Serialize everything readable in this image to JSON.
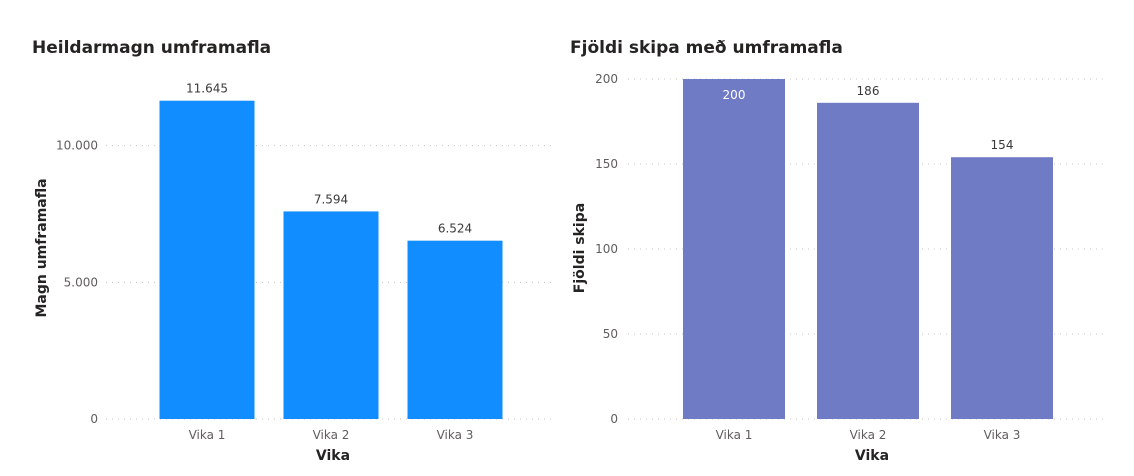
{
  "chart_data": [
    {
      "type": "bar",
      "title": "Heildarmagn umframafla",
      "xlabel": "Vika",
      "ylabel": "Magn umframafla",
      "categories": [
        "Vika 1",
        "Vika 2",
        "Vika 3"
      ],
      "values": [
        11645,
        7594,
        6524
      ],
      "value_labels": [
        "11.645",
        "7.594",
        "6.524"
      ],
      "ylim": [
        0,
        13500
      ],
      "yticks": [
        0,
        5000,
        10000
      ],
      "ytick_labels": [
        "0",
        "5.000",
        "10.000"
      ],
      "color": "#118DFF",
      "grid": true,
      "legend": "none"
    },
    {
      "type": "bar",
      "title": "Fjöldi skipa með umframafla",
      "xlabel": "Vika",
      "ylabel": "Fjöldi skipa",
      "categories": [
        "Vika 1",
        "Vika 2",
        "Vika 3"
      ],
      "values": [
        200,
        186,
        154
      ],
      "value_labels": [
        "200",
        "186",
        "154"
      ],
      "ylim": [
        0,
        200
      ],
      "yticks": [
        0,
        50,
        100,
        150,
        200
      ],
      "ytick_labels": [
        "0",
        "50",
        "100",
        "150",
        "200"
      ],
      "color": "#6F7BC4",
      "grid": true,
      "legend": "none"
    }
  ]
}
